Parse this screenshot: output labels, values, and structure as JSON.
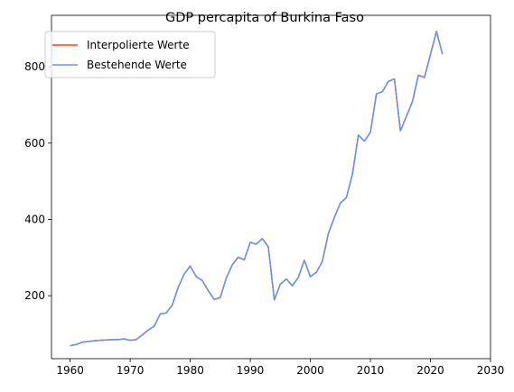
{
  "chart_data": {
    "type": "line",
    "title": "GDP percapita of Burkina Faso",
    "xlabel": "",
    "ylabel": "",
    "xlim": [
      1956.9,
      2030
    ],
    "ylim": [
      35,
      935
    ],
    "xticks": [
      1960,
      1970,
      1980,
      1990,
      2000,
      2010,
      2020,
      2030
    ],
    "yticks": [
      200,
      400,
      600,
      800
    ],
    "grid": false,
    "legend_position": "top-left",
    "series": [
      {
        "name": "Interpolierte Werte",
        "color": "#ff4500",
        "x": [
          1960,
          1961,
          1962,
          1963,
          1964,
          1965,
          1966,
          1967,
          1968,
          1969,
          1970,
          1971,
          1972,
          1973,
          1974,
          1975,
          1976,
          1977,
          1978,
          1979,
          1980,
          1981,
          1982,
          1983,
          1984,
          1985,
          1986,
          1987,
          1988,
          1989,
          1990,
          1991,
          1992,
          1993,
          1994,
          1995,
          1996,
          1997,
          1998,
          1999,
          2000,
          2001,
          2002,
          2003,
          2004,
          2005,
          2006,
          2007,
          2008,
          2009,
          2010,
          2011,
          2012,
          2013,
          2014,
          2015,
          2016,
          2017,
          2018,
          2019,
          2020,
          2021,
          2022
        ],
        "y": [
          69,
          72,
          78,
          80,
          82,
          83,
          84,
          85,
          85,
          87,
          83,
          85,
          97,
          110,
          120,
          152,
          155,
          175,
          222,
          257,
          278,
          250,
          240,
          213,
          190,
          195,
          246,
          281,
          301,
          294,
          340,
          335,
          350,
          328,
          189,
          230,
          244,
          226,
          248,
          293,
          250,
          261,
          290,
          363,
          405,
          443,
          457,
          518,
          621,
          605,
          628,
          729,
          735,
          762,
          768,
          632,
          670,
          709,
          778,
          772,
          832,
          893,
          833
        ]
      },
      {
        "name": "Bestehende Werte",
        "color": "#6495ed",
        "x": [
          1960,
          1961,
          1962,
          1963,
          1964,
          1965,
          1966,
          1967,
          1968,
          1969,
          1970,
          1971,
          1972,
          1973,
          1974,
          1975,
          1976,
          1977,
          1978,
          1979,
          1980,
          1981,
          1982,
          1983,
          1984,
          1985,
          1986,
          1987,
          1988,
          1989,
          1990,
          1991,
          1992,
          1993,
          1994,
          1995,
          1996,
          1997,
          1998,
          1999,
          2000,
          2001,
          2002,
          2003,
          2004,
          2005,
          2006,
          2007,
          2008,
          2009,
          2010,
          2011,
          2012,
          2013,
          2014,
          2015,
          2016,
          2017,
          2018,
          2019,
          2020,
          2021,
          2022
        ],
        "y": [
          69,
          72,
          78,
          80,
          82,
          83,
          84,
          85,
          85,
          87,
          83,
          85,
          97,
          110,
          120,
          152,
          155,
          175,
          222,
          257,
          278,
          250,
          240,
          213,
          190,
          195,
          246,
          281,
          301,
          294,
          340,
          335,
          350,
          328,
          189,
          230,
          244,
          226,
          248,
          293,
          250,
          261,
          290,
          363,
          405,
          443,
          457,
          518,
          621,
          605,
          628,
          729,
          735,
          762,
          768,
          632,
          670,
          709,
          778,
          772,
          832,
          893,
          833
        ]
      }
    ]
  }
}
